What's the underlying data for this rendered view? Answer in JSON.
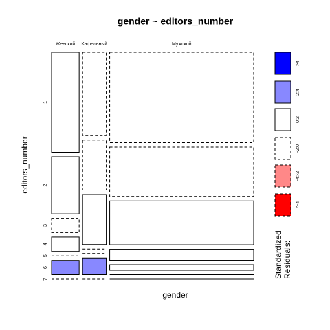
{
  "chart_data": {
    "type": "mosaic",
    "title": "gender ~ editors_number",
    "xlabel": "gender",
    "ylabel": "editors_number",
    "categories": [
      "Женский",
      "Кафельный",
      "Мужской"
    ],
    "series": [
      {
        "name": "1",
        "values": [
          7,
          5,
          33
        ],
        "residuals": [
          0.5,
          -0.6,
          -0.1
        ]
      },
      {
        "name": "2",
        "values": [
          4,
          3,
          18
        ],
        "residuals": [
          0.8,
          -0.4,
          -0.2
        ]
      },
      {
        "name": "3",
        "values": [
          1,
          3,
          16
        ],
        "residuals": [
          -0.5,
          1.5,
          0.9
        ]
      },
      {
        "name": "4",
        "values": [
          1,
          0,
          4
        ],
        "residuals": [
          0.6,
          -0.5,
          0.5
        ]
      },
      {
        "name": "5",
        "values": [
          0,
          0,
          2
        ],
        "residuals": [
          -0.3,
          -0.4,
          0.6
        ]
      },
      {
        "name": "6",
        "values": [
          1,
          1,
          0
        ],
        "residuals": [
          2.5,
          2.6,
          0.3
        ]
      },
      {
        "name": "7",
        "values": [
          0,
          0,
          0
        ],
        "residuals": [
          -0.2,
          -0.2,
          0.3
        ]
      }
    ],
    "legend": {
      "title": "Standardized\nResiduals:",
      "labels": [
        ">4",
        "2:4",
        "0:2",
        "-2:0",
        "-4:-2",
        "<-4"
      ],
      "breaks": [
        4,
        2,
        0,
        -2,
        -4
      ],
      "colors": [
        "#0000ff",
        "#8888ff",
        "#ffffff",
        "#ffffff",
        "#ff8888",
        "#ff0000"
      ]
    }
  }
}
